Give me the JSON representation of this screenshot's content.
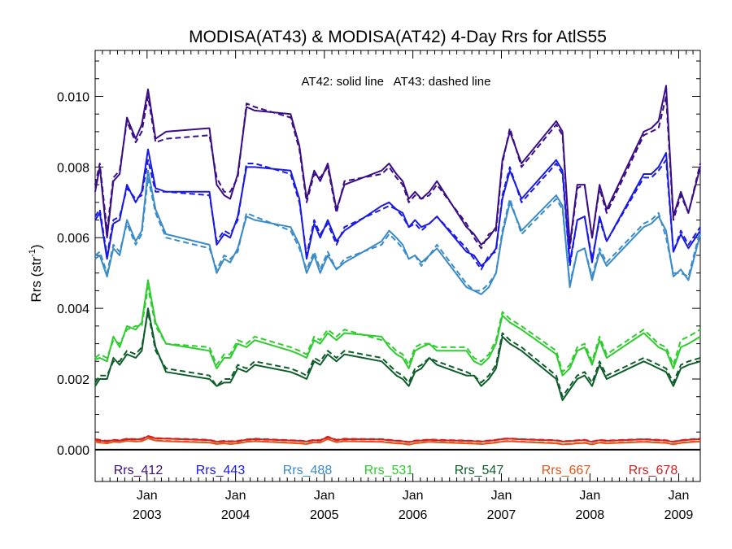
{
  "chart_data": {
    "type": "line",
    "title": "MODISA(AT43) & MODISA(AT42) 4-Day Rrs for AtlS55",
    "ylabel": "Rrs (str",
    "ylabel_sup": "-1",
    "ylabel_close": ")",
    "annotation": "AT42: solid line   AT43: dashed line",
    "ylim": [
      -0.0009,
      0.0113
    ],
    "xlim": [
      "2002-06-01",
      "2009-03-31"
    ],
    "yticks": [
      0.0,
      0.002,
      0.004,
      0.006,
      0.008,
      0.01
    ],
    "ytick_labels": [
      "0.000",
      "0.002",
      "0.004",
      "0.006",
      "0.008",
      "0.010"
    ],
    "xticks": [
      {
        "date": "2003-01-01",
        "month": "Jan",
        "year": "2003"
      },
      {
        "date": "2004-01-01",
        "month": "Jan",
        "year": "2004"
      },
      {
        "date": "2005-01-01",
        "month": "Jan",
        "year": "2005"
      },
      {
        "date": "2006-01-01",
        "month": "Jan",
        "year": "2006"
      },
      {
        "date": "2007-01-01",
        "month": "Jan",
        "year": "2007"
      },
      {
        "date": "2008-01-01",
        "month": "Jan",
        "year": "2008"
      },
      {
        "date": "2009-01-01",
        "month": "Jan",
        "year": "2009"
      }
    ],
    "reference_line": 0.0,
    "grid": false,
    "legend": "bottom inside plot",
    "x": [
      "2002-06-01",
      "2002-06-20",
      "2002-07-20",
      "2002-08-15",
      "2002-09-10",
      "2002-10-10",
      "2002-11-15",
      "2002-12-10",
      "2003-01-05",
      "2003-02-05",
      "2003-03-20",
      "2003-09-15",
      "2003-10-15",
      "2003-11-15",
      "2003-12-10",
      "2004-01-10",
      "2004-02-15",
      "2004-03-20",
      "2004-08-15",
      "2004-09-20",
      "2004-10-20",
      "2004-11-20",
      "2004-12-15",
      "2005-01-15",
      "2005-02-20",
      "2005-03-25",
      "2005-08-25",
      "2005-09-25",
      "2005-10-25",
      "2005-11-20",
      "2005-12-15",
      "2006-01-10",
      "2006-02-05",
      "2006-03-10",
      "2006-04-10",
      "2006-08-10",
      "2006-09-10",
      "2006-10-10",
      "2006-11-10",
      "2006-12-10",
      "2007-01-05",
      "2007-02-05",
      "2007-03-25",
      "2007-08-15",
      "2007-09-10",
      "2007-10-10",
      "2007-11-10",
      "2007-12-10",
      "2008-01-10",
      "2008-02-10",
      "2008-03-10",
      "2008-08-10",
      "2008-09-10",
      "2008-10-10",
      "2008-11-10",
      "2008-12-10",
      "2009-01-10",
      "2009-02-10",
      "2009-03-31"
    ],
    "series": [
      {
        "name": "Rrs_412",
        "color": "#3a0e86",
        "solid": [
          0.0073,
          0.008,
          0.006,
          0.0076,
          0.0078,
          0.0094,
          0.0088,
          0.0092,
          0.0102,
          0.0088,
          0.009,
          0.0091,
          0.0075,
          0.0072,
          0.0071,
          0.0078,
          0.0097,
          0.0096,
          0.0095,
          0.0086,
          0.0071,
          0.0079,
          0.0076,
          0.0081,
          0.0068,
          0.0075,
          0.0079,
          0.0081,
          0.0078,
          0.0076,
          0.0071,
          0.0073,
          0.0071,
          0.0073,
          0.0076,
          0.0063,
          0.0061,
          0.0058,
          0.006,
          0.0063,
          0.0082,
          0.009,
          0.0081,
          0.0093,
          0.009,
          0.0058,
          0.0075,
          0.0075,
          0.006,
          0.0075,
          0.0068,
          0.009,
          0.0091,
          0.0093,
          0.0103,
          0.0066,
          0.0073,
          0.0067,
          0.008
        ],
        "dashed": [
          0.0075,
          0.0081,
          0.0062,
          0.0077,
          0.0079,
          0.0093,
          0.0087,
          0.009,
          0.01,
          0.0087,
          0.0088,
          0.0089,
          0.0077,
          0.0073,
          0.0073,
          0.0077,
          0.0098,
          0.0097,
          0.0094,
          0.0085,
          0.007,
          0.0078,
          0.0077,
          0.008,
          0.0067,
          0.0076,
          0.0078,
          0.008,
          0.0077,
          0.0075,
          0.007,
          0.0072,
          0.0071,
          0.0072,
          0.0075,
          0.0064,
          0.006,
          0.0057,
          0.0061,
          0.0062,
          0.0081,
          0.0091,
          0.008,
          0.0092,
          0.0089,
          0.0057,
          0.0074,
          0.0075,
          0.006,
          0.0074,
          0.0067,
          0.0089,
          0.009,
          0.0091,
          0.01,
          0.0065,
          0.0072,
          0.0067,
          0.0081
        ]
      },
      {
        "name": "Rrs_443",
        "color": "#1a1ae6",
        "solid": [
          0.0065,
          0.0067,
          0.0054,
          0.0064,
          0.0065,
          0.0075,
          0.007,
          0.0073,
          0.0085,
          0.0074,
          0.0073,
          0.0073,
          0.0058,
          0.0061,
          0.006,
          0.0066,
          0.008,
          0.008,
          0.0079,
          0.0071,
          0.0054,
          0.0064,
          0.006,
          0.0065,
          0.0059,
          0.0062,
          0.0069,
          0.007,
          0.0068,
          0.0067,
          0.0063,
          0.0065,
          0.0063,
          0.0064,
          0.0066,
          0.0056,
          0.0055,
          0.0052,
          0.0054,
          0.0057,
          0.0071,
          0.0079,
          0.0071,
          0.0082,
          0.0079,
          0.0053,
          0.0065,
          0.0066,
          0.0053,
          0.0066,
          0.0059,
          0.0078,
          0.0078,
          0.008,
          0.0084,
          0.0056,
          0.0061,
          0.0057,
          0.0062
        ],
        "dashed": [
          0.0066,
          0.0068,
          0.0055,
          0.0065,
          0.0066,
          0.0074,
          0.0071,
          0.0072,
          0.0082,
          0.0073,
          0.0073,
          0.0072,
          0.0059,
          0.0062,
          0.0061,
          0.0065,
          0.0081,
          0.0081,
          0.0078,
          0.007,
          0.0055,
          0.0065,
          0.0061,
          0.0064,
          0.0058,
          0.0063,
          0.0068,
          0.0069,
          0.0068,
          0.0066,
          0.0063,
          0.0064,
          0.0062,
          0.0064,
          0.0066,
          0.0057,
          0.0054,
          0.0051,
          0.0055,
          0.0056,
          0.0072,
          0.008,
          0.007,
          0.0081,
          0.0078,
          0.0052,
          0.0065,
          0.0066,
          0.0054,
          0.0065,
          0.0059,
          0.0077,
          0.0077,
          0.0079,
          0.0082,
          0.0056,
          0.0062,
          0.0058,
          0.0063
        ]
      },
      {
        "name": "Rrs_488",
        "color": "#3b8bc9",
        "solid": [
          0.0054,
          0.0055,
          0.0049,
          0.0057,
          0.0055,
          0.0065,
          0.0059,
          0.0062,
          0.0079,
          0.0068,
          0.0061,
          0.0058,
          0.005,
          0.0054,
          0.0053,
          0.0057,
          0.0066,
          0.0065,
          0.0063,
          0.0058,
          0.005,
          0.0055,
          0.005,
          0.0055,
          0.0051,
          0.0053,
          0.0059,
          0.0062,
          0.006,
          0.0058,
          0.0054,
          0.0055,
          0.0053,
          0.0055,
          0.0057,
          0.0046,
          0.0045,
          0.0044,
          0.0046,
          0.005,
          0.0061,
          0.007,
          0.0062,
          0.0072,
          0.0069,
          0.0046,
          0.0056,
          0.0057,
          0.0048,
          0.0056,
          0.0052,
          0.0063,
          0.0064,
          0.0066,
          0.0062,
          0.0049,
          0.0051,
          0.0048,
          0.0061
        ],
        "dashed": [
          0.0055,
          0.0056,
          0.005,
          0.0058,
          0.0056,
          0.0064,
          0.0058,
          0.0061,
          0.0077,
          0.0067,
          0.006,
          0.0057,
          0.0051,
          0.0055,
          0.0054,
          0.0056,
          0.0067,
          0.0066,
          0.0062,
          0.0057,
          0.0051,
          0.0056,
          0.0051,
          0.0056,
          0.0051,
          0.0054,
          0.0058,
          0.0061,
          0.0059,
          0.0057,
          0.0054,
          0.0055,
          0.0052,
          0.0055,
          0.0058,
          0.0047,
          0.0045,
          0.0045,
          0.0047,
          0.005,
          0.0062,
          0.0071,
          0.0061,
          0.0071,
          0.0068,
          0.0047,
          0.0056,
          0.0057,
          0.0049,
          0.0057,
          0.0053,
          0.0064,
          0.0065,
          0.0067,
          0.006,
          0.005,
          0.005,
          0.0049,
          0.0062
        ]
      },
      {
        "name": "Rrs_531",
        "color": "#2ecc2e",
        "solid": [
          0.00255,
          0.0026,
          0.0025,
          0.0032,
          0.0029,
          0.0035,
          0.0034,
          0.0036,
          0.0048,
          0.0036,
          0.003,
          0.0028,
          0.0023,
          0.0026,
          0.0026,
          0.003,
          0.0029,
          0.0031,
          0.0028,
          0.0027,
          0.0026,
          0.0031,
          0.003,
          0.0033,
          0.0031,
          0.0033,
          0.0032,
          0.0029,
          0.0027,
          0.0026,
          0.0023,
          0.0028,
          0.0029,
          0.003,
          0.0028,
          0.0028,
          0.0025,
          0.0024,
          0.0026,
          0.003,
          0.0038,
          0.0036,
          0.0034,
          0.0027,
          0.0021,
          0.0023,
          0.0028,
          0.0029,
          0.0024,
          0.0031,
          0.0026,
          0.0033,
          0.0031,
          0.0029,
          0.0028,
          0.0023,
          0.0029,
          0.003,
          0.0032
        ],
        "dashed": [
          0.0026,
          0.0027,
          0.0026,
          0.0031,
          0.003,
          0.0034,
          0.0035,
          0.0035,
          0.0046,
          0.0035,
          0.003,
          0.0029,
          0.0024,
          0.0027,
          0.0027,
          0.0031,
          0.003,
          0.0032,
          0.0029,
          0.0028,
          0.0027,
          0.0032,
          0.0031,
          0.0034,
          0.0032,
          0.0034,
          0.0031,
          0.003,
          0.0028,
          0.0027,
          0.0024,
          0.0029,
          0.003,
          0.003,
          0.0029,
          0.0029,
          0.0026,
          0.0025,
          0.0027,
          0.0031,
          0.0039,
          0.0037,
          0.0035,
          0.0028,
          0.0022,
          0.0024,
          0.0029,
          0.003,
          0.0025,
          0.0032,
          0.0027,
          0.0034,
          0.0032,
          0.003,
          0.0029,
          0.0024,
          0.0031,
          0.0032,
          0.0034
        ]
      },
      {
        "name": "Rrs_547",
        "color": "#0d5e2a",
        "solid": [
          0.0018,
          0.002,
          0.002,
          0.0026,
          0.0024,
          0.0027,
          0.0026,
          0.0028,
          0.004,
          0.0029,
          0.0022,
          0.002,
          0.0018,
          0.0019,
          0.0019,
          0.0023,
          0.0022,
          0.0024,
          0.0022,
          0.0021,
          0.002,
          0.0025,
          0.0024,
          0.0027,
          0.0025,
          0.0027,
          0.0025,
          0.0023,
          0.0021,
          0.002,
          0.0018,
          0.0022,
          0.0023,
          0.0026,
          0.0024,
          0.0021,
          0.0021,
          0.0018,
          0.002,
          0.0023,
          0.0032,
          0.003,
          0.0028,
          0.002,
          0.0014,
          0.0017,
          0.002,
          0.0021,
          0.0018,
          0.0024,
          0.002,
          0.0025,
          0.0024,
          0.0023,
          0.0022,
          0.0018,
          0.0023,
          0.0024,
          0.0025
        ],
        "dashed": [
          0.0019,
          0.0021,
          0.0021,
          0.0025,
          0.0025,
          0.0028,
          0.0027,
          0.0029,
          0.0039,
          0.0028,
          0.0023,
          0.0021,
          0.0018,
          0.002,
          0.002,
          0.0024,
          0.0023,
          0.0025,
          0.0023,
          0.0022,
          0.0021,
          0.0026,
          0.0025,
          0.0028,
          0.0026,
          0.0028,
          0.0026,
          0.0024,
          0.0022,
          0.0021,
          0.0019,
          0.0023,
          0.0024,
          0.0026,
          0.0025,
          0.0022,
          0.0021,
          0.0019,
          0.0021,
          0.0024,
          0.0033,
          0.0031,
          0.0029,
          0.0021,
          0.0015,
          0.0018,
          0.0021,
          0.0022,
          0.0019,
          0.0025,
          0.0021,
          0.0026,
          0.0025,
          0.0024,
          0.0023,
          0.0019,
          0.0024,
          0.0025,
          0.0026
        ]
      },
      {
        "name": "Rrs_667",
        "color": "#e0561b",
        "solid": [
          0.00022,
          0.0002,
          0.00018,
          0.00022,
          0.00021,
          0.00025,
          0.00023,
          0.00024,
          0.00032,
          0.00026,
          0.00024,
          0.0002,
          0.00016,
          0.00018,
          0.00016,
          0.00018,
          0.00022,
          0.00024,
          0.00019,
          0.00018,
          0.00016,
          0.00021,
          0.0002,
          0.0003,
          0.00021,
          0.00024,
          0.00022,
          0.0002,
          0.00018,
          0.00017,
          0.00014,
          0.00018,
          0.0002,
          0.00022,
          0.00021,
          0.00018,
          0.00017,
          0.00016,
          0.00018,
          0.0002,
          0.00023,
          0.00024,
          0.00022,
          0.00018,
          0.00015,
          0.00016,
          0.00018,
          0.00019,
          0.00015,
          0.0002,
          0.00018,
          0.00022,
          0.00021,
          0.0002,
          0.00019,
          0.00015,
          0.00019,
          0.00021,
          0.00023
        ],
        "dashed": [
          0.00024,
          0.00022,
          0.00019,
          0.00023,
          0.00022,
          0.00026,
          0.00024,
          0.00025,
          0.00033,
          0.00027,
          0.00025,
          0.00021,
          0.00017,
          0.00019,
          0.00017,
          0.00019,
          0.00023,
          0.00025,
          0.0002,
          0.00019,
          0.00017,
          0.00022,
          0.00021,
          0.00031,
          0.00022,
          0.00025,
          0.00023,
          0.00021,
          0.00019,
          0.00018,
          0.00015,
          0.00019,
          0.00021,
          0.00023,
          0.00022,
          0.00019,
          0.00018,
          0.00017,
          0.00019,
          0.00021,
          0.00024,
          0.00025,
          0.00023,
          0.00019,
          0.00016,
          0.00017,
          0.00019,
          0.0002,
          0.00016,
          0.00021,
          0.00019,
          0.00023,
          0.00022,
          0.00021,
          0.0002,
          0.00016,
          0.0002,
          0.00022,
          0.00024
        ]
      },
      {
        "name": "Rrs_678",
        "color": "#d42020",
        "solid": [
          0.00028,
          0.00026,
          0.00024,
          0.00027,
          0.00026,
          0.0003,
          0.00029,
          0.0003,
          0.00038,
          0.00032,
          0.00031,
          0.00027,
          0.00022,
          0.00024,
          0.00023,
          0.00024,
          0.00028,
          0.0003,
          0.00026,
          0.00025,
          0.00023,
          0.00027,
          0.00026,
          0.00036,
          0.00027,
          0.0003,
          0.00029,
          0.00027,
          0.00025,
          0.00024,
          0.00021,
          0.00025,
          0.00026,
          0.00028,
          0.00027,
          0.00025,
          0.00024,
          0.00023,
          0.00025,
          0.00027,
          0.0003,
          0.00031,
          0.00029,
          0.00026,
          0.00023,
          0.00024,
          0.00026,
          0.00027,
          0.00022,
          0.00027,
          0.00025,
          0.00029,
          0.00028,
          0.00027,
          0.00026,
          0.00022,
          0.00026,
          0.00028,
          0.0003
        ],
        "dashed": [
          0.0003,
          0.00028,
          0.00025,
          0.00028,
          0.00027,
          0.00031,
          0.0003,
          0.00031,
          0.00039,
          0.00033,
          0.00032,
          0.00028,
          0.00023,
          0.00025,
          0.00024,
          0.00025,
          0.00029,
          0.00031,
          0.00027,
          0.00026,
          0.00024,
          0.00028,
          0.00027,
          0.00037,
          0.00028,
          0.00031,
          0.0003,
          0.00028,
          0.00026,
          0.00025,
          0.00022,
          0.00026,
          0.00027,
          0.00029,
          0.00028,
          0.00026,
          0.00025,
          0.00024,
          0.00026,
          0.00028,
          0.00031,
          0.00032,
          0.0003,
          0.00027,
          0.00024,
          0.00025,
          0.00027,
          0.00028,
          0.00023,
          0.00028,
          0.00026,
          0.0003,
          0.00029,
          0.00028,
          0.00027,
          0.00023,
          0.00027,
          0.00029,
          0.00031
        ]
      }
    ]
  }
}
